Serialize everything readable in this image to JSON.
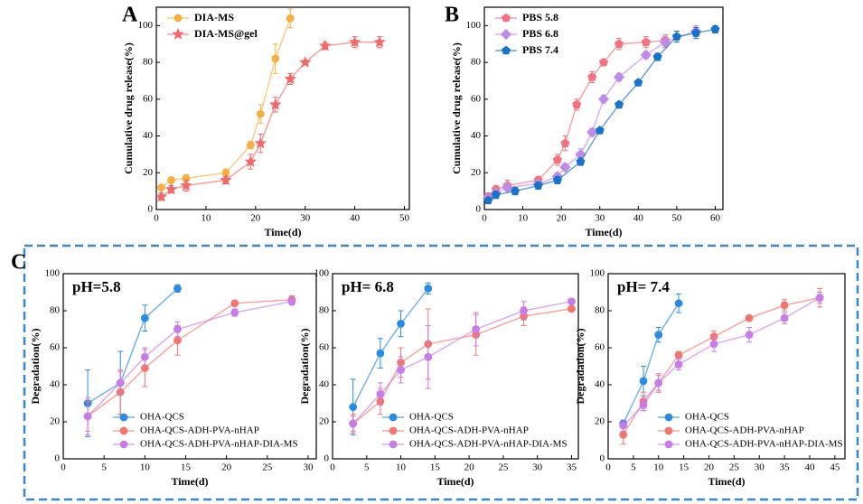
{
  "chart_data": [
    {
      "type": "line",
      "panel_label": "A",
      "xlabel": "Time(d)",
      "ylabel": "Cumulative drug release(%)",
      "xlim": [
        0,
        51
      ],
      "ylim": [
        0,
        110
      ],
      "xticks": [
        0,
        10,
        20,
        30,
        40,
        50
      ],
      "yticks": [
        0,
        20,
        40,
        60,
        80,
        100
      ],
      "legend": "upper left",
      "series": [
        {
          "name": "DIA-MS",
          "color": "#f5b041",
          "marker": "circle",
          "x": [
            1,
            3,
            6,
            14,
            19,
            21,
            24,
            27
          ],
          "values": [
            12,
            16,
            17,
            20,
            35,
            52,
            82,
            104
          ],
          "errors": [
            1,
            1,
            2,
            2,
            2,
            5,
            8,
            5
          ]
        },
        {
          "name": "DIA-MS@gel",
          "color": "#f06a6a",
          "marker": "star",
          "x": [
            1,
            3,
            6,
            14,
            19,
            21,
            24,
            27,
            30,
            34,
            40,
            45
          ],
          "values": [
            7,
            11,
            13,
            16,
            26,
            36,
            57,
            71,
            80,
            89,
            91,
            91
          ],
          "errors": [
            2,
            2,
            3,
            2,
            4,
            5,
            4,
            3,
            1,
            2,
            3,
            3
          ]
        }
      ]
    },
    {
      "type": "line",
      "panel_label": "B",
      "xlabel": "Time(d)",
      "ylabel": "Cumulative drug release(%)",
      "xlim": [
        0,
        62
      ],
      "ylim": [
        0,
        110
      ],
      "xticks": [
        0,
        10,
        20,
        30,
        40,
        50,
        60
      ],
      "yticks": [
        0,
        20,
        40,
        60,
        80,
        100
      ],
      "legend": "upper left",
      "series": [
        {
          "name": "PBS 5.8",
          "color": "#f4717f",
          "marker": "pentagon",
          "x": [
            1,
            3,
            6,
            14,
            19,
            21,
            24,
            28,
            31,
            35,
            42,
            47
          ],
          "values": [
            7,
            11,
            13,
            16,
            27,
            36,
            57,
            72,
            80,
            90,
            91,
            92
          ],
          "errors": [
            2,
            2,
            3,
            2,
            3,
            4,
            3,
            3,
            1,
            3,
            3,
            3
          ]
        },
        {
          "name": "PBS 6.8",
          "color": "#c08ae8",
          "marker": "diamond",
          "x": [
            1,
            3,
            6,
            14,
            19,
            21,
            25,
            28,
            31,
            35,
            42,
            47,
            55
          ],
          "values": [
            6,
            9,
            12,
            14,
            18,
            23,
            30,
            42,
            60,
            72,
            84,
            91,
            97
          ],
          "errors": [
            2,
            2,
            2,
            2,
            2,
            2,
            3,
            2,
            2,
            2,
            2,
            3,
            3
          ]
        },
        {
          "name": "PBS 7.4",
          "color": "#1a72c9",
          "marker": "pentagon",
          "x": [
            1,
            3,
            8,
            14,
            19,
            25,
            30,
            35,
            40,
            45,
            50,
            55,
            60
          ],
          "values": [
            5,
            8,
            10,
            13,
            16,
            26,
            43,
            57,
            69,
            83,
            94,
            96,
            98
          ],
          "errors": [
            1,
            2,
            2,
            2,
            2,
            2,
            1,
            1,
            1,
            2,
            3,
            3,
            2
          ]
        }
      ]
    },
    {
      "type": "line",
      "panel_label": "C",
      "title": "pH=5.8",
      "xlabel": "Time(d)",
      "ylabel": "Degradation(%)",
      "xlim": [
        0,
        31
      ],
      "ylim": [
        0,
        100
      ],
      "xticks": [
        0,
        5,
        10,
        15,
        20,
        25,
        30
      ],
      "yticks": [
        0,
        20,
        40,
        60,
        80,
        100
      ],
      "legend": "lower left",
      "series": [
        {
          "name": "OHA-QCS",
          "color": "#2a8be0",
          "marker": "circle",
          "x": [
            3,
            7,
            10,
            14
          ],
          "values": [
            30,
            41,
            76,
            92
          ],
          "errors": [
            18,
            17,
            7,
            2
          ]
        },
        {
          "name": "OHA-QCS-ADH-PVA-nHAP",
          "color": "#f2766e",
          "marker": "circle",
          "x": [
            3,
            7,
            10,
            14,
            21,
            28
          ],
          "values": [
            23,
            36,
            49,
            64,
            84,
            86
          ],
          "errors": [
            8,
            12,
            10,
            8,
            1,
            2
          ]
        },
        {
          "name": "OHA-QCS-ADH-PVA-nHAP-DIA-MS",
          "color": "#c77ce6",
          "marker": "circle",
          "x": [
            3,
            7,
            10,
            14,
            21,
            28
          ],
          "values": [
            23,
            41,
            55,
            70,
            79,
            85
          ],
          "errors": [
            10,
            6,
            5,
            4,
            2,
            2
          ]
        }
      ]
    },
    {
      "type": "line",
      "title": "pH= 6.8",
      "xlabel": "Time(d)",
      "ylabel": "Degradation(%)",
      "xlim": [
        0,
        36
      ],
      "ylim": [
        0,
        100
      ],
      "xticks": [
        0,
        5,
        10,
        15,
        20,
        25,
        30,
        35
      ],
      "yticks": [
        0,
        20,
        40,
        60,
        80,
        100
      ],
      "legend": "lower left",
      "series": [
        {
          "name": "OHA-QCS",
          "color": "#2a8be0",
          "marker": "circle",
          "x": [
            3,
            7,
            10,
            14
          ],
          "values": [
            28,
            57,
            73,
            92
          ],
          "errors": [
            15,
            8,
            7,
            3
          ]
        },
        {
          "name": "OHA-QCS-ADH-PVA-nHAP",
          "color": "#f2766e",
          "marker": "circle",
          "x": [
            3,
            7,
            10,
            14,
            21,
            28,
            35
          ],
          "values": [
            19,
            31,
            52,
            62,
            67,
            77,
            81
          ],
          "errors": [
            5,
            7,
            8,
            19,
            11,
            5,
            1
          ]
        },
        {
          "name": "OHA-QCS-ADH-PVA-nHAP-DIA-MS",
          "color": "#c77ce6",
          "marker": "circle",
          "x": [
            3,
            7,
            10,
            14,
            21,
            28,
            35
          ],
          "values": [
            19,
            35,
            48,
            55,
            70,
            80,
            85
          ],
          "errors": [
            4,
            6,
            7,
            17,
            9,
            5,
            1
          ]
        }
      ]
    },
    {
      "type": "line",
      "title": "pH= 7.4",
      "xlabel": "Time(d)",
      "ylabel": "Degradation(%)",
      "xlim": [
        0,
        47
      ],
      "ylim": [
        0,
        100
      ],
      "xticks": [
        0,
        5,
        10,
        15,
        20,
        25,
        30,
        35,
        40,
        45
      ],
      "yticks": [
        0,
        20,
        40,
        60,
        80,
        100
      ],
      "legend": "lower left",
      "series": [
        {
          "name": "OHA-QCS",
          "color": "#2a8be0",
          "marker": "circle",
          "x": [
            3,
            7,
            10,
            14
          ],
          "values": [
            19,
            42,
            67,
            84
          ],
          "errors": [
            2,
            8,
            4,
            5
          ]
        },
        {
          "name": "OHA-QCS-ADH-PVA-nHAP",
          "color": "#f2766e",
          "marker": "circle",
          "x": [
            3,
            7,
            10,
            14,
            21,
            28,
            35,
            42
          ],
          "values": [
            13,
            31,
            41,
            56,
            66,
            76,
            83,
            87
          ],
          "errors": [
            5,
            5,
            5,
            2,
            3,
            1,
            3,
            5
          ]
        },
        {
          "name": "OHA-QCS-ADH-PVA-nHAP-DIA-MS",
          "color": "#c77ce6",
          "marker": "circle",
          "x": [
            3,
            7,
            10,
            14,
            21,
            28,
            35,
            42
          ],
          "values": [
            18,
            29,
            41,
            51,
            62,
            67,
            76,
            87
          ],
          "errors": [
            3,
            3,
            4,
            3,
            4,
            4,
            3,
            3
          ]
        }
      ]
    }
  ]
}
